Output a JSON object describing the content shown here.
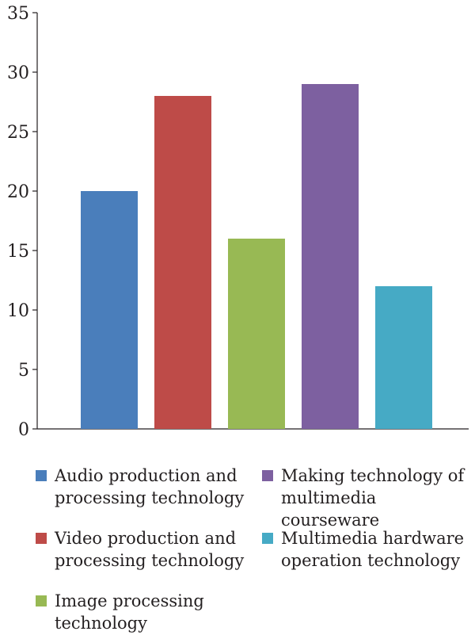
{
  "chart_data": {
    "type": "bar",
    "categories": [
      "Audio production and\nprocessing technology",
      "Video production and\nprocessing technology",
      "Image processing\ntechnology",
      "Making technology of\nmultimedia courseware",
      "Multimedia hardware\noperation technology"
    ],
    "values": [
      20,
      28,
      16,
      29,
      12
    ],
    "colors": [
      "#4a7ebb",
      "#be4b48",
      "#98b954",
      "#7d60a0",
      "#46aac5"
    ],
    "ylim": [
      0,
      35
    ],
    "yticks": [
      "0",
      "5",
      "10",
      "15",
      "20",
      "25",
      "30",
      "35"
    ],
    "grid": false,
    "legend_position": "bottom",
    "title": "",
    "xlabel": "",
    "ylabel": ""
  }
}
